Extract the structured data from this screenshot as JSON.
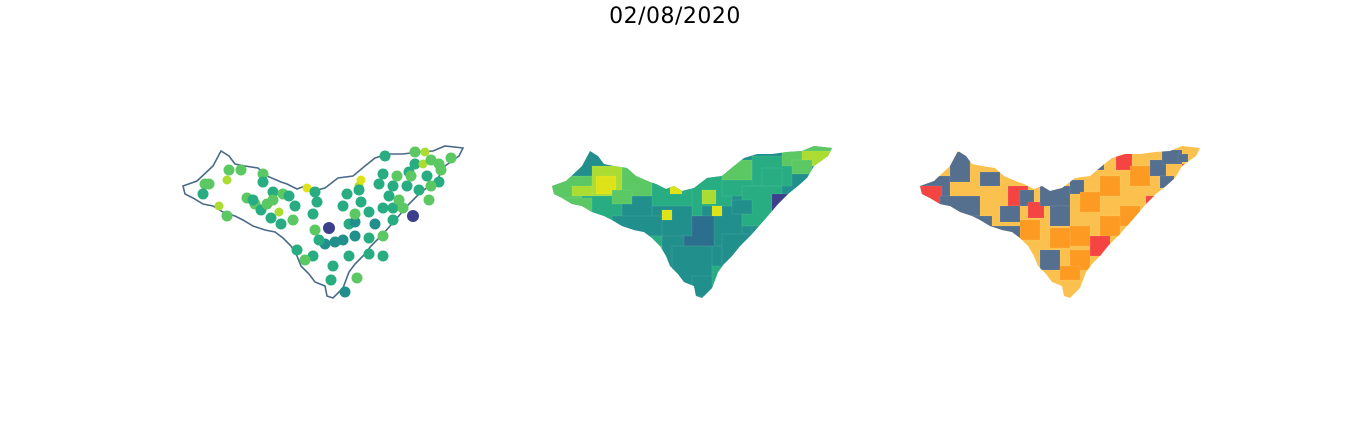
{
  "title": "02/08/2020",
  "panels": [
    {
      "id": "points",
      "kind": "point-map"
    },
    {
      "id": "viridis-choropleth",
      "kind": "choropleth"
    },
    {
      "id": "category-choropleth",
      "kind": "choropleth"
    }
  ],
  "colors": {
    "outline": "#4a6a8a",
    "viridis": [
      "#3b3f8c",
      "#2c6e8e",
      "#21908c",
      "#27ad81",
      "#5cc863",
      "#aadc32",
      "#dde318"
    ],
    "categories": [
      "#556f8f",
      "#fbc14e",
      "#fc9a22",
      "#f54542"
    ]
  }
}
